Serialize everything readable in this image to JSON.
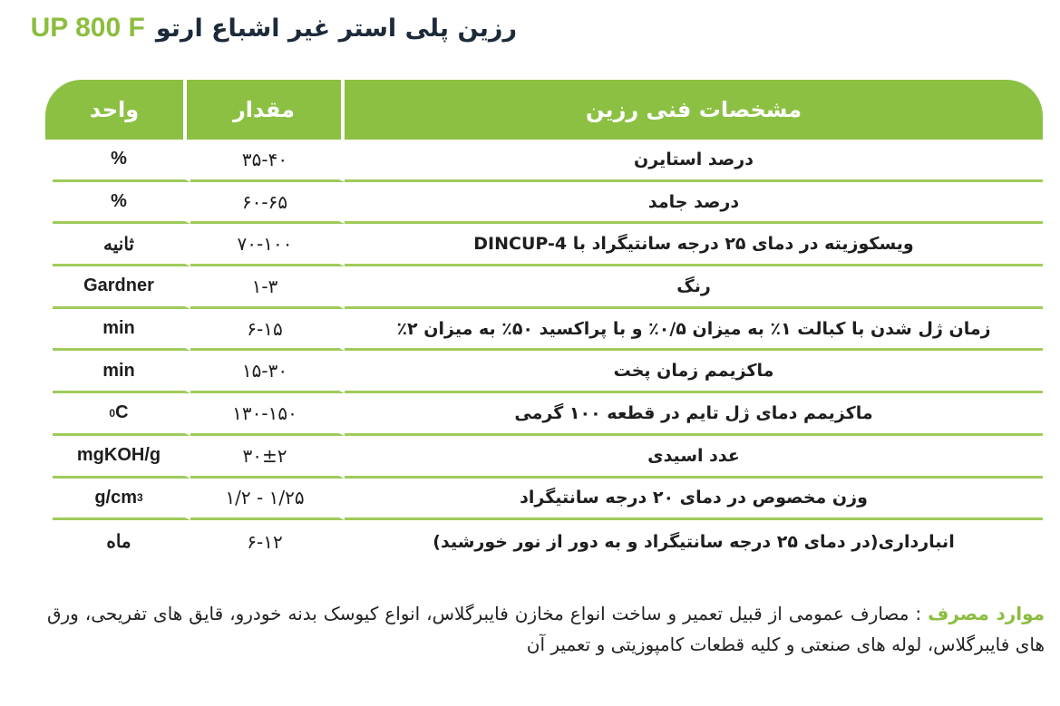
{
  "title": {
    "fa": "رزین پلی استر غیر اشباع ارتو",
    "en": "UP 800 F"
  },
  "table": {
    "headers": {
      "spec": "مشخصات فنی رزین",
      "value": "مقدار",
      "unit": "واحد"
    },
    "rows": [
      {
        "spec": "درصد استایرن",
        "value": "۳۵-۴۰",
        "unit": "%",
        "sup": ""
      },
      {
        "spec": "درصد جامد",
        "value": "۶۰-۶۵",
        "unit": "%",
        "sup": ""
      },
      {
        "spec": "ویسکوزیته در دمای ۲۵ درجه سانتیگراد با DINCUP-4",
        "value": "۷۰-۱۰۰",
        "unit": "ثانیه",
        "sup": ""
      },
      {
        "spec": "رنگ",
        "value": "۱-۳",
        "unit": "Gardner",
        "sup": ""
      },
      {
        "spec": "زمان ژل شدن با کبالت ۱٪ به میزان ۰/۵٪ و با پراکسید ۵۰٪ به میزان ۲٪",
        "value": "۶-۱۵",
        "unit": "min",
        "sup": ""
      },
      {
        "spec": "ماکزیمم زمان پخت",
        "value": "۱۵-۳۰",
        "unit": "min",
        "sup": ""
      },
      {
        "spec": "ماکزیمم دمای ژل تایم در قطعه ۱۰۰ گرمی",
        "value": "۱۳۰-۱۵۰",
        "unit": "C",
        "sup_pre": "0"
      },
      {
        "spec": "عدد اسیدی",
        "value": "۳۰±۲",
        "unit": "mgKOH/g",
        "sup": ""
      },
      {
        "spec": "وزن مخصوص در دمای ۲۰ درجه سانتیگراد",
        "value": "۱/۲ - ۱/۲۵",
        "unit": "g/cm",
        "sup": "3"
      },
      {
        "spec": "انبارداری(در دمای ۲۵ درجه سانتیگراد و به دور از نور خورشید)",
        "value": "۶-۱۲",
        "unit": "ماه",
        "sup": ""
      }
    ]
  },
  "footer": {
    "label": "موارد مصرف",
    "text": " : مصارف عمومی از قبیل تعمیر و ساخت انواع مخازن فایبرگلاس، انواع کیوسک بدنه خودرو، قایق های تفریحی، ورق های فایبرگلاس، لوله های صنعتی و کلیه قطعات کامپوزیتی و تعمیر آن"
  },
  "colors": {
    "accent": "#8cc043",
    "title": "#1d2a3a"
  }
}
